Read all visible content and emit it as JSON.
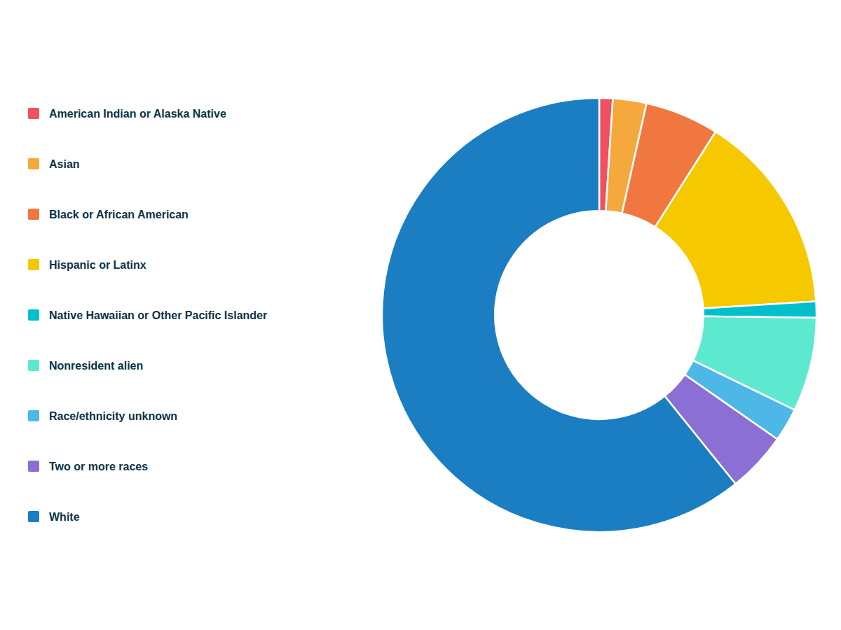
{
  "chart_data": {
    "type": "pie",
    "categories": [
      "American Indian or Alaska Native",
      "Asian",
      "Black or African American",
      "Hispanic or Latinx",
      "Native Hawaiian or Other Pacific Islander",
      "Nonresident alien",
      "Race/ethnicity unknown",
      "Two or more races",
      "White"
    ],
    "values": [
      1.0,
      2.5,
      5.5,
      15.0,
      1.2,
      7.0,
      2.5,
      4.5,
      60.8
    ],
    "colors": [
      "#F05060",
      "#F5A83B",
      "#F07840",
      "#F5C800",
      "#00BFCC",
      "#5DE8D0",
      "#4DB8E8",
      "#8B6FD4",
      "#1B7EC2"
    ],
    "legend": "left"
  }
}
